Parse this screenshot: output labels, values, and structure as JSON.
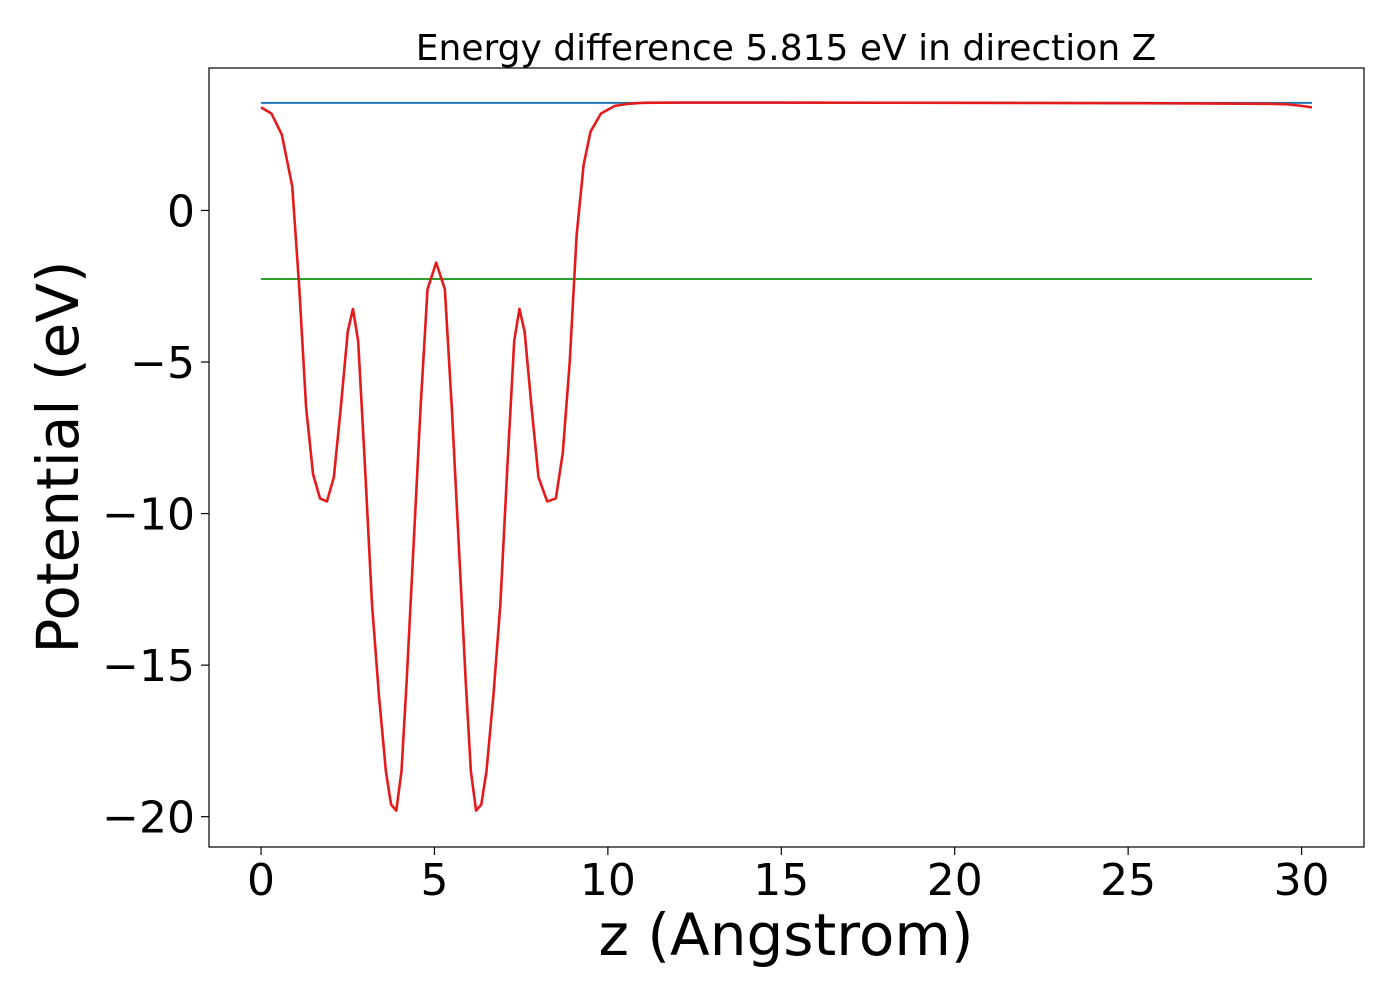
{
  "chart_data": {
    "type": "line",
    "title": "Energy difference 5.815 eV in direction Z",
    "xlabel": "z (Angstrom)",
    "ylabel": "Potential (eV)",
    "xlim": [
      -1.5,
      31.8
    ],
    "ylim": [
      -21.0,
      4.7
    ],
    "x_ticks": [
      0,
      5,
      10,
      15,
      20,
      25,
      30
    ],
    "x_tick_labels": [
      "0",
      "5",
      "10",
      "15",
      "20",
      "25",
      "30"
    ],
    "y_ticks": [
      0,
      -5,
      -10,
      -15,
      -20
    ],
    "y_tick_labels": [
      "0",
      "−5",
      "−10",
      "−15",
      "−20"
    ],
    "grid": false,
    "legend": "none",
    "series": [
      {
        "color": "#1f77b4",
        "x": [
          0,
          30.3
        ],
        "y": [
          3.55,
          3.55
        ]
      },
      {
        "color": "#2ca02c",
        "x": [
          0,
          30.3
        ],
        "y": [
          -2.26,
          -2.26
        ]
      },
      {
        "color": "#e41a1c",
        "x": [
          0,
          0.3,
          0.6,
          0.9,
          1.1,
          1.3,
          1.5,
          1.7,
          1.9,
          2.1,
          2.3,
          2.5,
          2.65,
          2.8,
          3.0,
          3.2,
          3.4,
          3.6,
          3.75,
          3.9,
          4.05,
          4.2,
          4.4,
          4.6,
          4.8,
          5.05,
          5.3,
          5.5,
          5.7,
          5.9,
          6.05,
          6.2,
          6.35,
          6.5,
          6.7,
          6.9,
          7.1,
          7.3,
          7.45,
          7.6,
          7.8,
          8.0,
          8.25,
          8.5,
          8.7,
          8.9,
          9.1,
          9.3,
          9.5,
          9.8,
          10.2,
          10.6,
          11.0,
          12.0,
          15.0,
          20.0,
          25.0,
          29.0,
          29.6,
          30.0,
          30.3
        ],
        "y": [
          3.4,
          3.2,
          2.5,
          0.8,
          -2.5,
          -6.5,
          -8.7,
          -9.5,
          -9.6,
          -8.8,
          -6.5,
          -4.0,
          -3.25,
          -4.3,
          -8.5,
          -13.0,
          -16.0,
          -18.5,
          -19.6,
          -19.8,
          -18.5,
          -15.5,
          -11.0,
          -6.5,
          -2.6,
          -1.72,
          -2.6,
          -6.5,
          -11.0,
          -15.5,
          -18.5,
          -19.8,
          -19.6,
          -18.5,
          -16.0,
          -13.0,
          -8.5,
          -4.3,
          -3.25,
          -4.0,
          -6.5,
          -8.8,
          -9.6,
          -9.5,
          -8.0,
          -5.0,
          -0.8,
          1.5,
          2.6,
          3.2,
          3.45,
          3.52,
          3.55,
          3.56,
          3.56,
          3.55,
          3.54,
          3.52,
          3.5,
          3.45,
          3.4
        ]
      }
    ]
  }
}
